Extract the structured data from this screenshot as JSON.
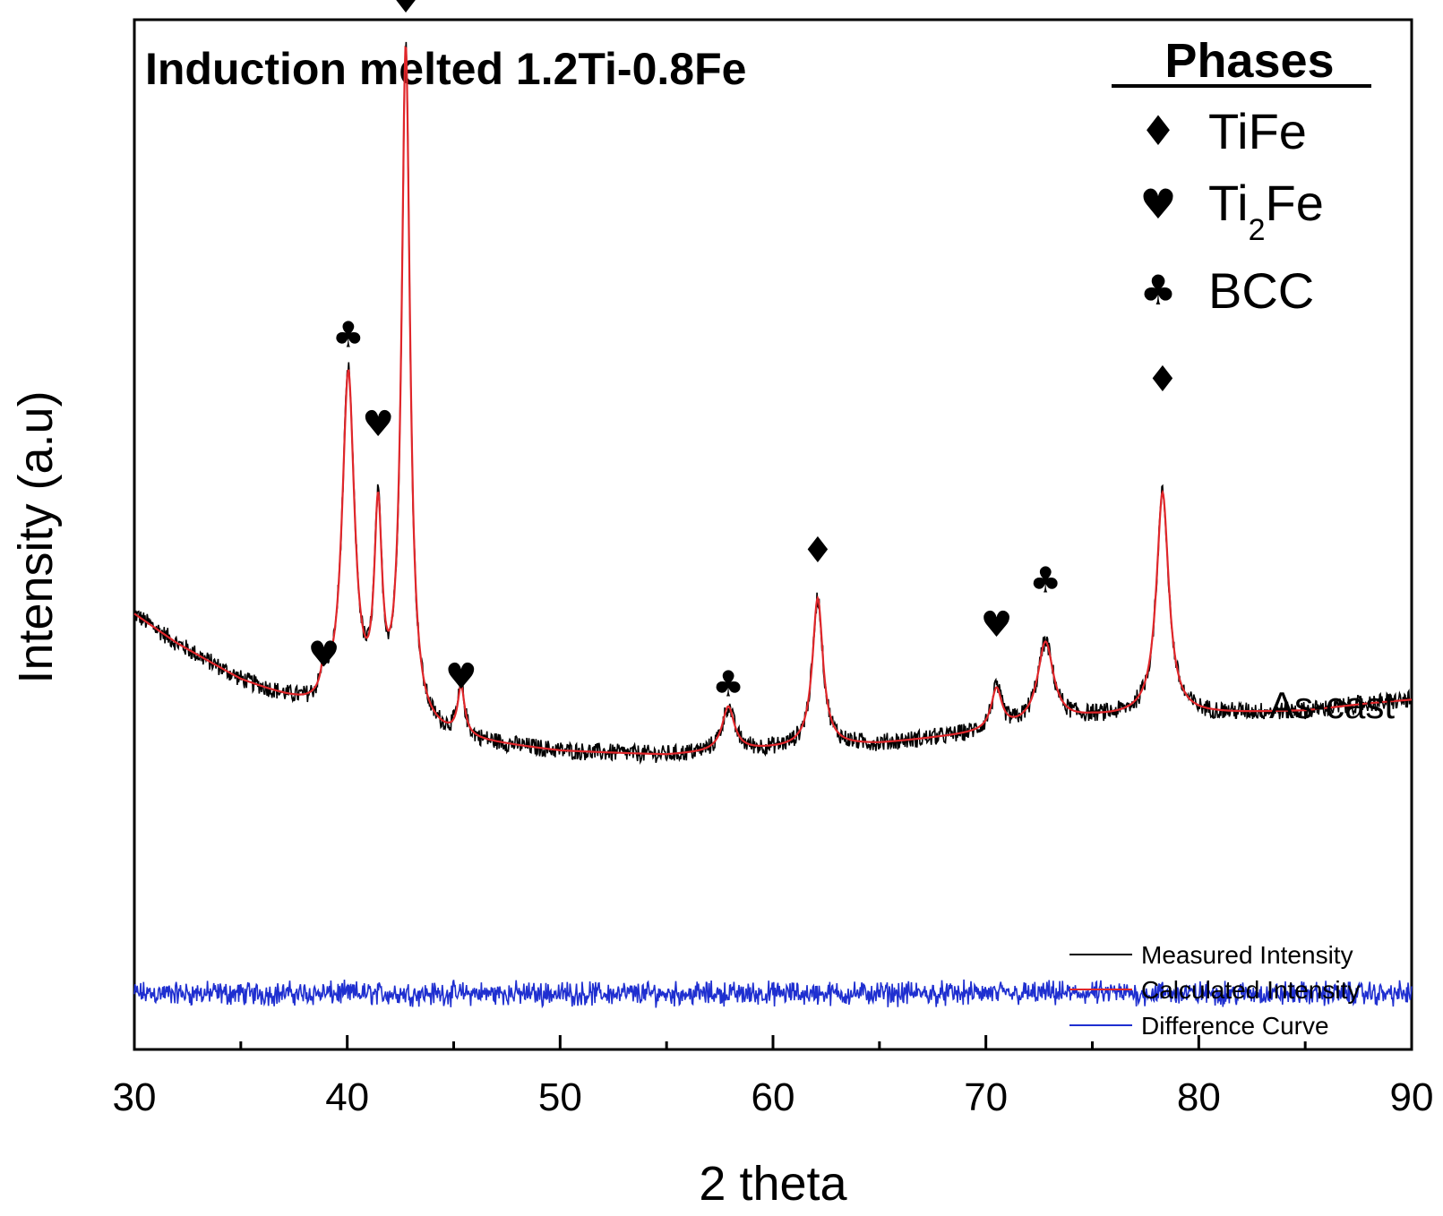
{
  "chart_data": {
    "type": "line",
    "title": "Induction melted 1.2Ti-0.8Fe",
    "xlabel": "2 theta",
    "ylabel": "Intensity (a.u)",
    "xlim": [
      30,
      90
    ],
    "ylim": [
      0,
      100
    ],
    "xticks": [
      30,
      40,
      50,
      60,
      70,
      80,
      90
    ],
    "minor_xtick_step": 5,
    "ytick_labels_shown": false,
    "sample_label": "As-cast",
    "series": [
      {
        "name": "Measured Intensity",
        "color": "#000000",
        "noise_amplitude": 1.2,
        "baseline": [
          [
            30,
            36
          ],
          [
            32,
            32
          ],
          [
            35,
            27
          ],
          [
            38,
            23.5
          ],
          [
            40,
            21.5
          ],
          [
            45,
            19
          ],
          [
            50,
            17.5
          ],
          [
            55,
            17
          ],
          [
            60,
            17.8
          ],
          [
            65,
            18.5
          ],
          [
            70,
            20
          ],
          [
            75,
            22
          ],
          [
            80,
            22.5
          ],
          [
            85,
            23
          ],
          [
            88,
            24
          ],
          [
            90,
            24.5
          ]
        ],
        "peaks": [
          {
            "x": 38.9,
            "height": 3.5,
            "width": 0.18
          },
          {
            "x": 40.05,
            "height": 46,
            "width": 0.35
          },
          {
            "x": 41.45,
            "height": 26,
            "width": 0.22
          },
          {
            "x": 42.75,
            "height": 91,
            "width": 0.24
          },
          {
            "x": 45.35,
            "height": 6.5,
            "width": 0.2
          },
          {
            "x": 57.9,
            "height": 6,
            "width": 0.35
          },
          {
            "x": 62.1,
            "height": 20,
            "width": 0.3
          },
          {
            "x": 70.5,
            "height": 5.5,
            "width": 0.3
          },
          {
            "x": 72.8,
            "height": 11,
            "width": 0.45
          },
          {
            "x": 78.3,
            "height": 30,
            "width": 0.35
          }
        ]
      },
      {
        "name": "Calculated Intensity",
        "color": "#e0262a"
      },
      {
        "name": "Difference Curve",
        "color": "#1f2fd0",
        "baseline_level": -15,
        "noise_amplitude": 1.0
      }
    ],
    "phases_legend": {
      "title": "Phases",
      "items": [
        {
          "symbol": "♦",
          "name": "TiFe",
          "label_main": "TiFe",
          "label_sub": ""
        },
        {
          "symbol": "♥",
          "name": "Ti2Fe",
          "label_main": "Ti",
          "label_sub": "2",
          "label_rest": "Fe"
        },
        {
          "symbol": "♣",
          "name": "BCC",
          "label_main": "BCC",
          "label_sub": ""
        }
      ]
    },
    "peak_markers": [
      {
        "x": 38.9,
        "phase": "Ti2Fe",
        "symbol": "♥",
        "y": 29
      },
      {
        "x": 40.05,
        "phase": "BCC",
        "symbol": "♣",
        "y": 72
      },
      {
        "x": 41.45,
        "phase": "Ti2Fe",
        "symbol": "♥",
        "y": 60
      },
      {
        "x": 42.75,
        "phase": "TiFe",
        "symbol": "♦",
        "y": 117
      },
      {
        "x": 45.35,
        "phase": "Ti2Fe",
        "symbol": "♥",
        "y": 26
      },
      {
        "x": 57.9,
        "phase": "BCC",
        "symbol": "♣",
        "y": 25
      },
      {
        "x": 62.1,
        "phase": "TiFe",
        "symbol": "♦",
        "y": 43
      },
      {
        "x": 70.5,
        "phase": "Ti2Fe",
        "symbol": "♥",
        "y": 33
      },
      {
        "x": 72.8,
        "phase": "BCC",
        "symbol": "♣",
        "y": 39
      },
      {
        "x": 78.3,
        "phase": "TiFe",
        "symbol": "♦",
        "y": 66
      }
    ]
  }
}
